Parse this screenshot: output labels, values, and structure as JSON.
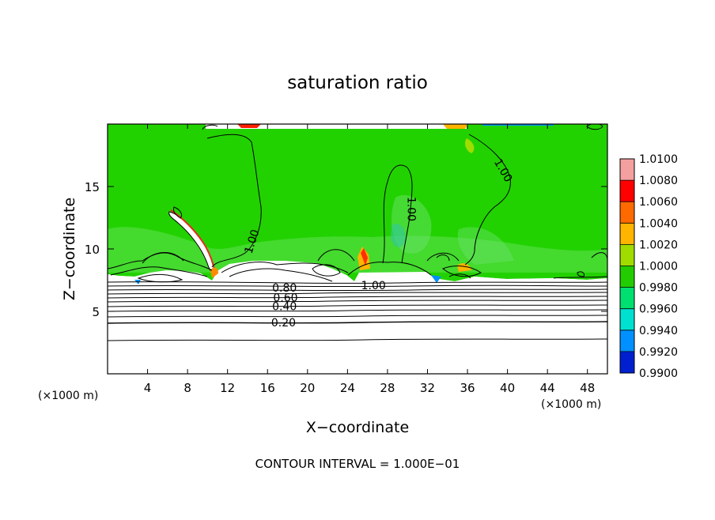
{
  "chart_data": {
    "type": "heatmap",
    "title": "saturation ratio",
    "xlabel": "X−coordinate",
    "ylabel": "Z−coordinate",
    "x_unit_left": "(×1000 m)",
    "x_unit_right": "(×1000 m)",
    "xlim": [
      0,
      50
    ],
    "ylim": [
      0,
      20
    ],
    "x_ticks": [
      4,
      8,
      12,
      16,
      20,
      24,
      28,
      32,
      36,
      40,
      44,
      48
    ],
    "y_ticks": [
      5,
      10,
      15
    ],
    "footer": "CONTOUR INTERVAL = 1.000E−01",
    "colorbar": {
      "levels": [
        "1.0100",
        "1.0080",
        "1.0060",
        "1.0040",
        "1.0020",
        "1.0000",
        "0.9980",
        "0.9960",
        "0.9940",
        "0.9920",
        "0.9900"
      ],
      "colors": [
        "#f4a0a0",
        "#ff0000",
        "#ff6a00",
        "#ffb400",
        "#a0dc00",
        "#22cc00",
        "#00e070",
        "#00e0d0",
        "#0090ff",
        "#0020d0",
        "#6000a0"
      ]
    },
    "contour_labels": [
      {
        "text": "1.00",
        "x": 14.4,
        "z": 10.6,
        "rotate": -72
      },
      {
        "text": "1.00",
        "x": 30.4,
        "z": 13.2,
        "rotate": 90
      },
      {
        "text": "1.00",
        "x": 39.6,
        "z": 16.3,
        "rotate": 60
      },
      {
        "text": "1.00",
        "x": 26.6,
        "z": 7.1,
        "rotate": 0
      },
      {
        "text": "0.80",
        "x": 17.7,
        "z": 6.9,
        "rotate": 0
      },
      {
        "text": "0.60",
        "x": 17.8,
        "z": 6.1,
        "rotate": 0
      },
      {
        "text": "0.40",
        "x": 17.7,
        "z": 5.4,
        "rotate": 0
      },
      {
        "text": "0.20",
        "x": 17.6,
        "z": 4.1,
        "rotate": 0
      }
    ]
  }
}
